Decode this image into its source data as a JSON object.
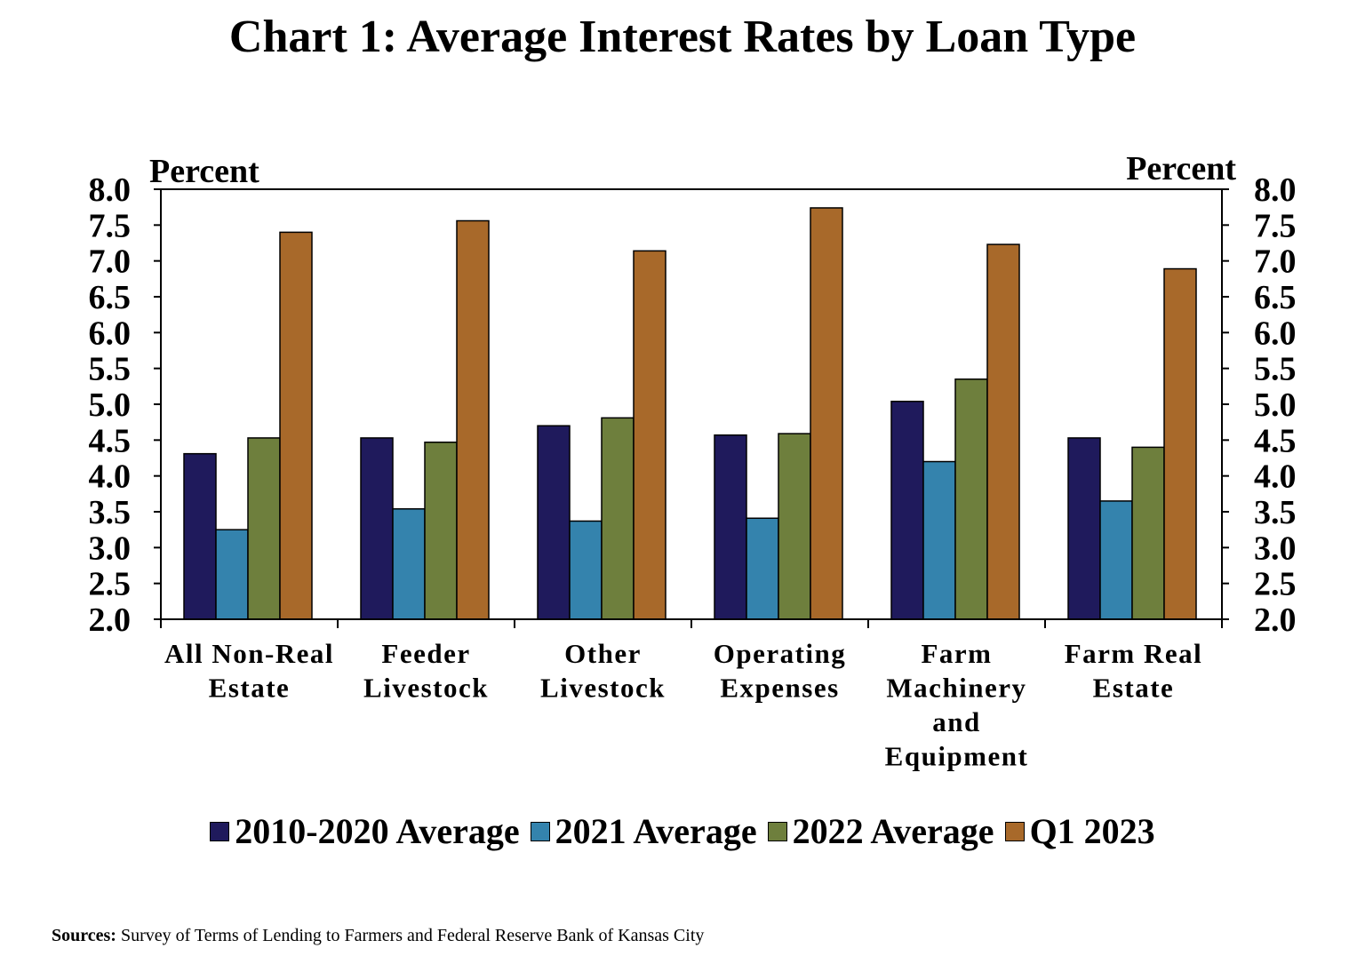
{
  "title": "Chart 1: Average Interest Rates by Loan Type",
  "source": {
    "label": "Sources:",
    "text": "Survey of Terms of Lending to Farmers and Federal Reserve Bank of Kansas City"
  },
  "chart_data": {
    "type": "bar",
    "title": "Chart 1: Average Interest Rates by Loan Type",
    "ylabel_left": "Percent",
    "ylabel_right": "Percent",
    "ylim": [
      2.0,
      8.0
    ],
    "yticks": [
      "2.0",
      "2.5",
      "3.0",
      "3.5",
      "4.0",
      "4.5",
      "5.0",
      "5.5",
      "6.0",
      "6.5",
      "7.0",
      "7.5",
      "8.0"
    ],
    "grid": false,
    "legend_position": "bottom",
    "categories": [
      [
        "All Non-Real",
        "Estate"
      ],
      [
        "Feeder",
        "Livestock"
      ],
      [
        "Other",
        "Livestock"
      ],
      [
        "Operating",
        "Expenses"
      ],
      [
        "Farm",
        "Machinery",
        "and",
        "Equipment"
      ],
      [
        "Farm Real",
        "Estate"
      ]
    ],
    "series": [
      {
        "name": "2010-2020 Average",
        "color": "#1f1a5c",
        "values": [
          4.31,
          4.53,
          4.7,
          4.57,
          5.04,
          4.53
        ]
      },
      {
        "name": "2021 Average",
        "color": "#3483ad",
        "values": [
          3.25,
          3.54,
          3.37,
          3.41,
          4.2,
          3.65
        ]
      },
      {
        "name": "2022 Average",
        "color": "#6e7f3d",
        "values": [
          4.53,
          4.47,
          4.81,
          4.59,
          5.35,
          4.4
        ]
      },
      {
        "name": "Q1 2023",
        "color": "#a8692a",
        "values": [
          7.4,
          7.56,
          7.14,
          7.74,
          7.23,
          6.89
        ]
      }
    ]
  }
}
